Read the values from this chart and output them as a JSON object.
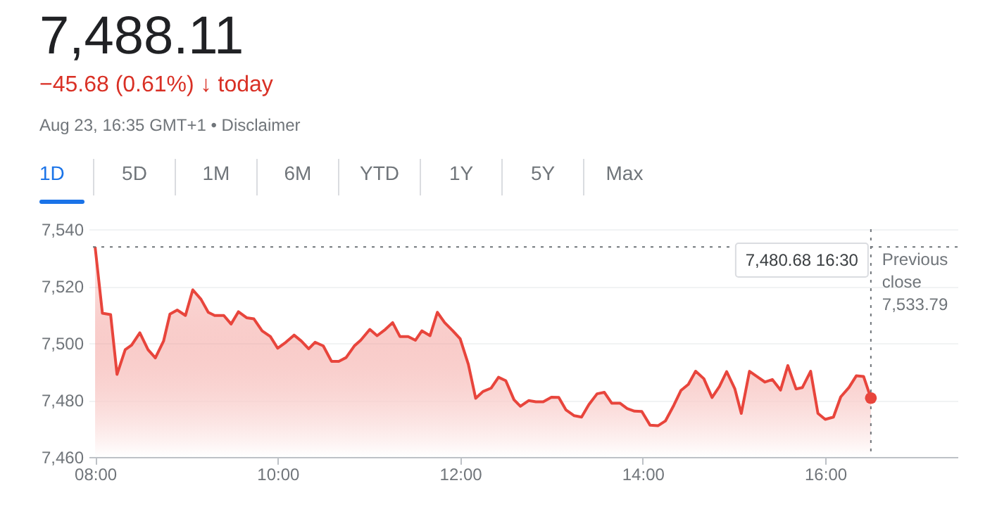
{
  "chart_data": {
    "type": "area",
    "title": "7,488.11",
    "subtitle": "−45.68 (0.61%) ↓ today",
    "annotations": [
      "Aug 23, 16:35 GMT+1 • Disclaimer",
      "1D",
      "5D",
      "1M",
      "6M",
      "YTD",
      "1Y",
      "5Y",
      "Max",
      "7,480.68  16:30"
    ],
    "x": [
      8.0,
      8.08,
      8.17,
      8.24,
      8.33,
      8.4,
      8.49,
      8.58,
      8.66,
      8.75,
      8.82,
      8.9,
      8.99,
      9.07,
      9.16,
      9.24,
      9.31,
      9.41,
      9.49,
      9.57,
      9.66,
      9.74,
      9.83,
      9.92,
      10.0,
      10.09,
      10.18,
      10.26,
      10.34,
      10.41,
      10.5,
      10.59,
      10.67,
      10.75,
      10.84,
      10.91,
      11.01,
      11.09,
      11.18,
      11.26,
      11.34,
      11.43,
      11.51,
      11.58,
      11.67,
      11.75,
      11.83,
      11.92,
      12.0,
      12.09,
      12.17,
      12.25,
      12.34,
      12.42,
      12.5,
      12.59,
      12.66,
      12.75,
      12.83,
      12.91,
      13.0,
      13.08,
      13.16,
      13.25,
      13.33,
      13.41,
      13.5,
      13.58,
      13.66,
      13.75,
      13.83,
      13.91,
      13.99,
      14.08,
      14.17,
      14.25,
      14.34,
      14.42,
      14.5,
      14.58,
      14.67,
      14.76,
      14.84,
      14.92,
      15.01,
      15.08,
      15.17,
      15.25,
      15.34,
      15.42,
      15.51,
      15.59,
      15.68,
      15.75,
      15.84,
      15.92,
      16.0,
      16.09,
      16.17,
      16.26,
      16.34,
      16.42,
      16.5
    ],
    "series": [
      {
        "color": "#e8453c",
        "values": [
          7533.8,
          7510.5,
          7510,
          7489,
          7497.7,
          7499.3,
          7503.6,
          7497.7,
          7494.8,
          7500.7,
          7510.2,
          7511.6,
          7509.7,
          7518.7,
          7515.4,
          7510.8,
          7509.7,
          7509.7,
          7506.7,
          7511,
          7508.9,
          7508.5,
          7504.3,
          7502.3,
          7498.2,
          7500.3,
          7502.8,
          7500.7,
          7498,
          7500.3,
          7499,
          7493.6,
          7493.6,
          7494.9,
          7499,
          7501,
          7504.8,
          7502.6,
          7504.8,
          7507.2,
          7502.3,
          7502.3,
          7501,
          7504.3,
          7502.6,
          7510.8,
          7507.2,
          7504.3,
          7501.5,
          7492.5,
          7480.6,
          7483,
          7484.2,
          7488,
          7486.8,
          7480.1,
          7477.8,
          7479.8,
          7479.4,
          7479.4,
          7481,
          7480.9,
          7476.5,
          7474.5,
          7474,
          7478.4,
          7482.2,
          7482.7,
          7478.9,
          7478.9,
          7477,
          7476.1,
          7476,
          7471.2,
          7471,
          7472.7,
          7478.1,
          7483.4,
          7485.5,
          7490.1,
          7487.5,
          7480.9,
          7484.7,
          7490,
          7483.9,
          7475.3,
          7490.1,
          7488.3,
          7486.3,
          7487.2,
          7483.5,
          7492.1,
          7483.9,
          7484.4,
          7490.1,
          7475.3,
          7473.2,
          7474,
          7481.1,
          7484.4,
          7488.5,
          7488.3,
          7480.68
        ]
      }
    ],
    "xlim": [
      7.93,
      17.45
    ],
    "xticks": [
      {
        "value": 8,
        "label": "08:00"
      },
      {
        "value": 10,
        "label": "10:00"
      },
      {
        "value": 12,
        "label": "12:00"
      },
      {
        "value": 14,
        "label": "14:00"
      },
      {
        "value": 16,
        "label": "16:00"
      }
    ],
    "ylim": [
      7460,
      7540
    ],
    "yticks": [
      {
        "value": 7460,
        "label": "7,460"
      },
      {
        "value": 7480,
        "label": "7,480"
      },
      {
        "value": 7500,
        "label": "7,500"
      },
      {
        "value": 7520,
        "label": "7,520"
      },
      {
        "value": 7540,
        "label": "7,540"
      }
    ],
    "grid": "y",
    "ref_lines": [
      {
        "axis": "y",
        "value": 7533.79,
        "label": "Previous close 7,533.79",
        "line_style": "dotted",
        "color": "#70757a"
      },
      {
        "axis": "x",
        "value": 16.5,
        "line_style": "dotted",
        "color": "#70757a"
      }
    ]
  }
}
